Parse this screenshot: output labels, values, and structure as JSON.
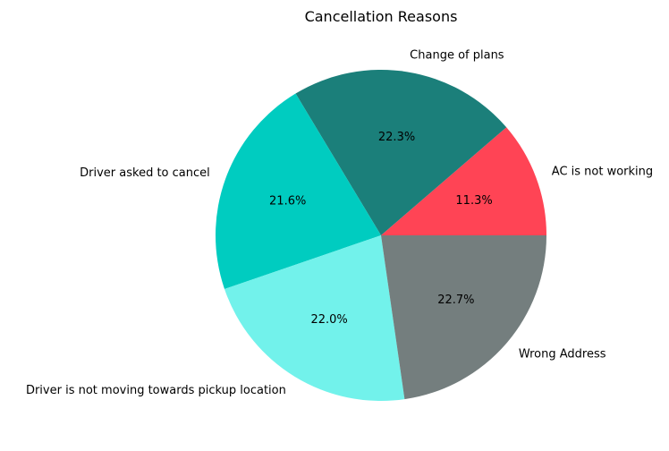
{
  "chart_data": {
    "type": "pie",
    "title": "Cancellation Reasons",
    "start_angle_deg": 0,
    "direction": "counterclockwise",
    "slices": [
      {
        "label": "AC is not working",
        "percent": 11.3,
        "percent_label": "11.3%",
        "color": "#ff4455"
      },
      {
        "label": "Change of plans",
        "percent": 22.3,
        "percent_label": "22.3%",
        "color": "#1b7f7a"
      },
      {
        "label": "Driver asked to cancel",
        "percent": 21.6,
        "percent_label": "21.6%",
        "color": "#00ccc0"
      },
      {
        "label": "Driver is not moving towards pickup location",
        "percent": 22.0,
        "percent_label": "22.0%",
        "color": "#72f2eb"
      },
      {
        "label": "Wrong Address",
        "percent": 22.7,
        "percent_label": "22.7%",
        "color": "#747e7e"
      }
    ]
  }
}
